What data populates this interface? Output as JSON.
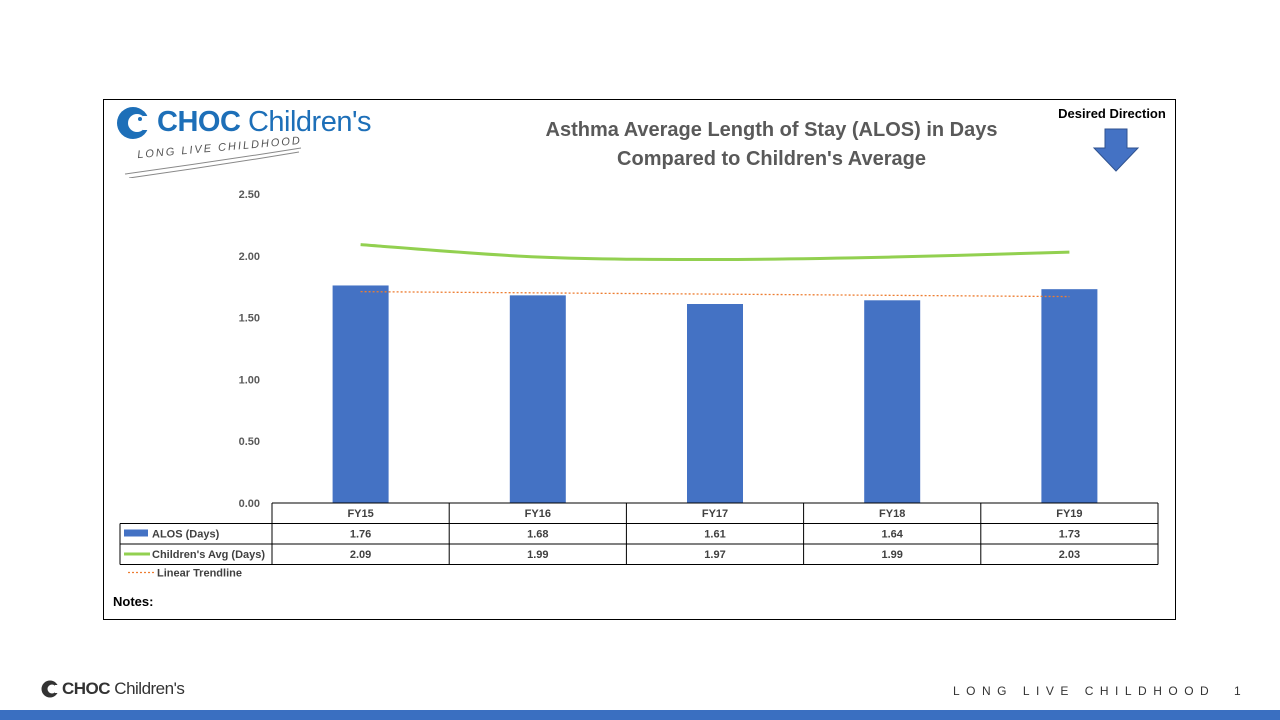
{
  "logo": {
    "bold": "CHOC",
    "rest": " Children's",
    "tagline": "LONG LIVE CHILDHOOD"
  },
  "desired_direction": {
    "label": "Desired Direction",
    "icon": "down-arrow-icon",
    "color": "#4472c4"
  },
  "notes_label": "Notes:",
  "footer": {
    "bold": "CHOC",
    "rest": " Children's",
    "tagline": "LONG LIVE CHILDHOOD",
    "page": "1"
  },
  "colors": {
    "bars": "#4472c4",
    "avg_line": "#92d050",
    "trend": "#ed7d31",
    "brand": "#1d6fb8",
    "bottom_bar": "#3a6fc1"
  },
  "chart_data": {
    "type": "bar",
    "title": "Asthma Average Length of Stay (ALOS) in Days Compared to Children's Average",
    "title_lines": [
      "Asthma Average Length of Stay (ALOS) in Days",
      "Compared to Children's Average"
    ],
    "categories": [
      "FY15",
      "FY16",
      "FY17",
      "FY18",
      "FY19"
    ],
    "series": [
      {
        "name": "ALOS (Days)",
        "type": "bar",
        "values": [
          1.76,
          1.68,
          1.61,
          1.64,
          1.73
        ]
      },
      {
        "name": "Children's Avg (Days)",
        "type": "line",
        "values": [
          2.09,
          1.99,
          1.97,
          1.99,
          2.03
        ]
      },
      {
        "name": "Linear Trendline",
        "type": "trendline",
        "of": "ALOS (Days)",
        "values": [
          1.71,
          1.7,
          1.69,
          1.68,
          1.67
        ]
      }
    ],
    "yticks": [
      "0.00",
      "0.50",
      "1.00",
      "1.50",
      "2.00",
      "2.50"
    ],
    "ylim": [
      0,
      2.5
    ],
    "value_labels": [
      [
        "1.76",
        "1.68",
        "1.61",
        "1.64",
        "1.73"
      ],
      [
        "2.09",
        "1.99",
        "1.97",
        "1.99",
        "2.03"
      ]
    ],
    "grid": false,
    "legend": "data-table"
  }
}
